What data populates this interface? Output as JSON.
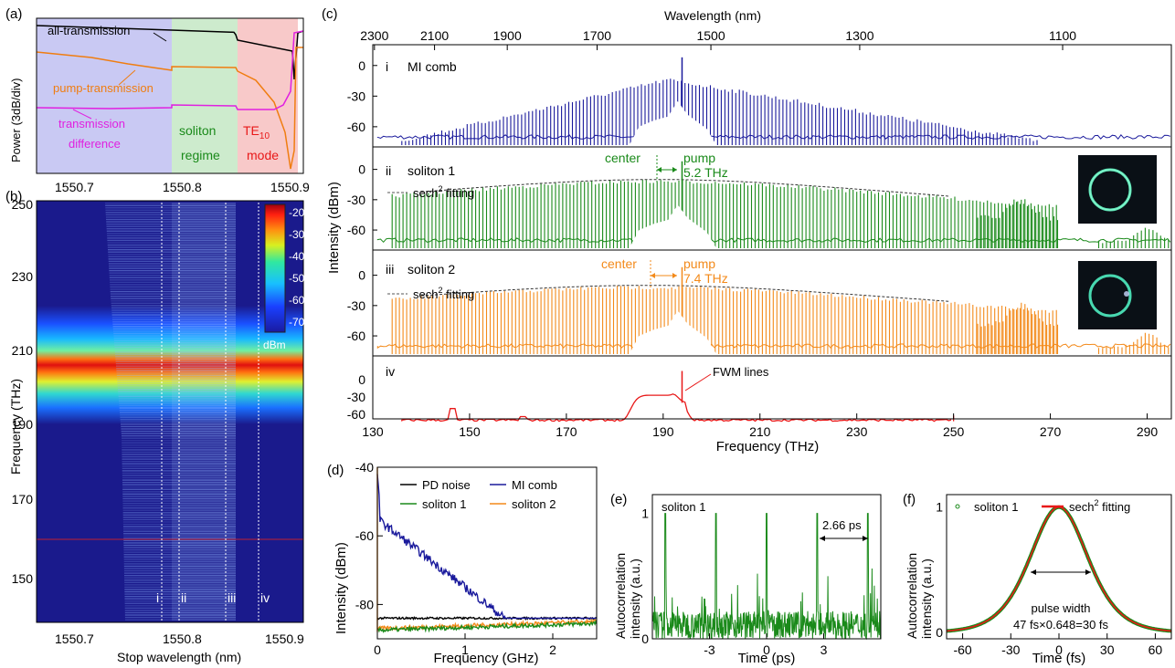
{
  "panel_labels": {
    "a": "(a)",
    "b": "(b)",
    "c": "(c)",
    "d": "(d)",
    "e": "(e)",
    "f": "(f)"
  },
  "colors": {
    "mi": "#1a1a9c",
    "soliton1": "#1a8a1a",
    "soliton2": "#f38a1a",
    "trace4": "#e81818",
    "all_trans": "#000000",
    "pump_trans": "#f07d10",
    "trans_diff": "#e020e0",
    "region_blue": "#c9c9f3",
    "region_green": "#cdebcd",
    "region_red": "#f8c9c9",
    "pd_noise": "#000000"
  },
  "panel_a": {
    "ylabel": "Power (3dB/div)",
    "labels": {
      "all": "all-transmission",
      "pump": "pump-transmission",
      "diff1": "transmission",
      "diff2": "difference",
      "sol1": "soliton",
      "sol2": "regime",
      "te": "TE",
      "te_sub": "10",
      "mode": "mode"
    },
    "x_ticks": [
      "1550.7",
      "1550.8",
      "1550.9"
    ]
  },
  "panel_b": {
    "xlabel": "Stop wavelength (nm)",
    "ylabel": "Frequency (THz)",
    "x_ticks": [
      "1550.7",
      "1550.8",
      "1550.9"
    ],
    "y_ticks": [
      "250",
      "230",
      "210",
      "190",
      "170",
      "150"
    ],
    "colorbar_ticks": [
      "-20",
      "-30",
      "-40",
      "-50",
      "-60",
      "-70"
    ],
    "colorbar_unit": "dBm",
    "markers": [
      "i",
      "ii",
      "iii",
      "iv"
    ]
  },
  "panel_c": {
    "top_axis_title": "Wavelength (nm)",
    "top_ticks": [
      "2300",
      "2100",
      "1900",
      "1700",
      "1500",
      "1300",
      "1100"
    ],
    "xlabel": "Frequency (THz)",
    "ylabel": "Intensity (dBm)",
    "x_ticks": [
      "130",
      "150",
      "170",
      "190",
      "210",
      "230",
      "250",
      "270",
      "290"
    ],
    "y_ticks": [
      "0",
      "-30",
      "-60"
    ],
    "rows": [
      {
        "num": "i",
        "name": "MI comb"
      },
      {
        "num": "ii",
        "name": "soliton 1",
        "fit": "sech",
        "fit_sup": "2",
        "fit_tail": " fitting",
        "center": "center",
        "pump": "pump",
        "offset": "5.2 THz"
      },
      {
        "num": "iii",
        "name": "soliton 2",
        "fit": "sech",
        "fit_sup": "2",
        "fit_tail": " fitting",
        "center": "center",
        "pump": "pump",
        "offset": "7.4 THz"
      },
      {
        "num": "iv",
        "fwm": "FWM lines"
      }
    ]
  },
  "panel_d": {
    "xlabel": "Frequency (GHz)",
    "ylabel": "Intensity (dBm)",
    "x_ticks": [
      "0",
      "1",
      "2"
    ],
    "y_ticks": [
      "-40",
      "-60",
      "-80"
    ],
    "legend": [
      "PD noise",
      "MI comb",
      "soliton 1",
      "soliton 2"
    ]
  },
  "panel_e": {
    "xlabel": "Time (ps)",
    "ylabel1": "Autocorrelation",
    "ylabel2": "intensity (a.u.)",
    "x_ticks": [
      "-3",
      "0",
      "3"
    ],
    "y_ticks": [
      "0",
      "1"
    ],
    "title": "soliton 1",
    "period": "2.66 ps"
  },
  "panel_f": {
    "xlabel": "Time (fs)",
    "ylabel1": "Autocorrelation",
    "ylabel2": "intensity (a.u.)",
    "x_ticks": [
      "-60",
      "-30",
      "0",
      "30",
      "60"
    ],
    "y_ticks": [
      "0",
      "1"
    ],
    "legend_dots": "soliton 1",
    "legend_fit": "sech",
    "legend_fit_sup": "2",
    "legend_fit_tail": " fitting",
    "pw1": "pulse width",
    "pw2": "47 fs×0.648=30 fs"
  },
  "chart_data": [
    {
      "type": "line",
      "panel": "a",
      "xlim": [
        1550.66,
        1550.92
      ],
      "series": [
        {
          "name": "all-transmission"
        },
        {
          "name": "pump-transmission"
        },
        {
          "name": "transmission difference"
        }
      ]
    },
    {
      "type": "heatmap",
      "panel": "b",
      "xlim": [
        1550.66,
        1550.91
      ],
      "ylim": [
        138,
        250
      ],
      "colorbar_range": [
        -75,
        -15
      ],
      "marker_x": [
        1550.765,
        1550.78,
        1550.825,
        1550.85
      ]
    },
    {
      "type": "line",
      "panel": "c",
      "xlim": [
        130,
        295
      ],
      "ylim": [
        -78,
        15
      ],
      "series": [
        {
          "name": "MI comb",
          "peak_thz": 191
        },
        {
          "name": "soliton 1",
          "center_thz": 188.7,
          "pump_thz": 193.9
        },
        {
          "name": "soliton 2",
          "center_thz": 186.5,
          "pump_thz": 193.9
        },
        {
          "name": "iv",
          "span_thz": [
            136,
            250
          ]
        }
      ]
    },
    {
      "type": "line",
      "panel": "d",
      "xlim": [
        0,
        2.5
      ],
      "ylim": [
        -90,
        -40
      ],
      "series": [
        {
          "name": "PD noise"
        },
        {
          "name": "MI comb"
        },
        {
          "name": "soliton 1"
        },
        {
          "name": "soliton 2"
        }
      ]
    },
    {
      "type": "line",
      "panel": "e",
      "xlim": [
        -6,
        6
      ],
      "ylim": [
        0,
        1.15
      ],
      "period_ps": 2.66
    },
    {
      "type": "line",
      "panel": "f",
      "xlim": [
        -70,
        70
      ],
      "ylim": [
        -0.05,
        1.1
      ],
      "fwhm_fs": 47
    }
  ]
}
